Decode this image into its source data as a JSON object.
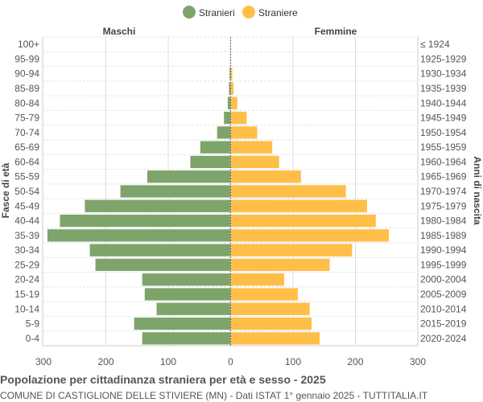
{
  "chart_data": {
    "type": "bar",
    "orientation": "horizontal-pyramid",
    "title": "Popolazione per cittadinanza straniera per età e sesso - 2025",
    "subtitle": "COMUNE DI CASTIGLIONE DELLE STIVIERE (MN) - Dati ISTAT 1° gennaio 2025 - TUTTITALIA.IT",
    "left_header": "Maschi",
    "right_header": "Femmine",
    "ylabel_left": "Fasce di età",
    "ylabel_right": "Anni di nascita",
    "xlim": [
      -300,
      300
    ],
    "x_ticks": [
      "300",
      "200",
      "100",
      "0",
      "100",
      "200",
      "300"
    ],
    "grid": true,
    "legend_position": "top",
    "categories": [
      "100+",
      "95-99",
      "90-94",
      "85-89",
      "80-84",
      "75-79",
      "70-74",
      "65-69",
      "60-64",
      "55-59",
      "50-54",
      "45-49",
      "40-44",
      "35-39",
      "30-34",
      "25-29",
      "20-24",
      "15-19",
      "10-14",
      "5-9",
      "0-4"
    ],
    "birth_years": [
      "≤ 1924",
      "1925-1929",
      "1930-1934",
      "1935-1939",
      "1940-1944",
      "1945-1949",
      "1950-1954",
      "1955-1959",
      "1960-1964",
      "1965-1969",
      "1970-1974",
      "1975-1979",
      "1980-1984",
      "1985-1989",
      "1990-1994",
      "1995-1999",
      "2000-2004",
      "2005-2009",
      "2010-2014",
      "2015-2019",
      "2020-2024"
    ],
    "series": [
      {
        "name": "Stranieri",
        "color": "#7ea46c",
        "side": "left",
        "values": [
          0,
          0,
          2,
          3,
          5,
          11,
          22,
          49,
          65,
          134,
          177,
          234,
          274,
          294,
          226,
          217,
          142,
          138,
          119,
          155,
          142
        ]
      },
      {
        "name": "Straniere",
        "color": "#ffbe47",
        "side": "right",
        "values": [
          0,
          0,
          3,
          5,
          11,
          26,
          43,
          67,
          78,
          113,
          185,
          219,
          233,
          254,
          195,
          159,
          86,
          108,
          127,
          130,
          143
        ]
      }
    ]
  }
}
